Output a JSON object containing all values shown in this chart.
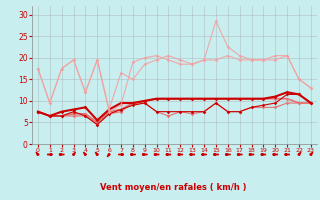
{
  "x": [
    0,
    1,
    2,
    3,
    4,
    5,
    6,
    7,
    8,
    9,
    10,
    11,
    12,
    13,
    14,
    15,
    16,
    17,
    18,
    19,
    20,
    21,
    22,
    23
  ],
  "series": [
    {
      "color": "#e87070",
      "alpha": 1.0,
      "linewidth": 0.8,
      "markersize": 1.8,
      "values": [
        7.5,
        6.5,
        6.5,
        6.5,
        6.5,
        4.5,
        7.0,
        7.5,
        9.5,
        9.5,
        7.5,
        6.5,
        7.5,
        7.0,
        7.5,
        9.5,
        7.5,
        7.5,
        8.5,
        8.5,
        8.5,
        9.5,
        9.5,
        9.5
      ]
    },
    {
      "color": "#e87070",
      "alpha": 1.0,
      "linewidth": 1.2,
      "markersize": 1.8,
      "values": [
        7.5,
        6.5,
        6.5,
        7.0,
        7.0,
        5.0,
        7.5,
        8.0,
        9.5,
        10.0,
        10.5,
        10.5,
        10.5,
        10.5,
        10.5,
        10.5,
        10.5,
        10.5,
        10.5,
        10.5,
        10.5,
        10.5,
        9.5,
        9.5
      ]
    },
    {
      "color": "#cc0000",
      "alpha": 1.0,
      "linewidth": 0.8,
      "markersize": 1.8,
      "values": [
        7.5,
        6.5,
        6.5,
        7.5,
        6.5,
        4.5,
        7.0,
        8.0,
        9.0,
        9.5,
        7.5,
        7.5,
        7.5,
        7.5,
        7.5,
        9.5,
        7.5,
        7.5,
        8.5,
        9.0,
        9.5,
        11.5,
        11.5,
        9.5
      ]
    },
    {
      "color": "#cc0000",
      "alpha": 1.0,
      "linewidth": 1.5,
      "markersize": 1.8,
      "values": [
        7.5,
        6.5,
        7.5,
        8.0,
        8.5,
        5.5,
        8.0,
        9.5,
        9.5,
        10.0,
        10.5,
        10.5,
        10.5,
        10.5,
        10.5,
        10.5,
        10.5,
        10.5,
        10.5,
        10.5,
        11.0,
        12.0,
        11.5,
        9.5
      ]
    },
    {
      "color": "#f4a0a0",
      "alpha": 0.9,
      "linewidth": 0.8,
      "markersize": 1.8,
      "values": [
        17.5,
        9.5,
        17.5,
        19.5,
        12.0,
        19.5,
        8.0,
        16.5,
        15.0,
        18.5,
        19.5,
        20.5,
        19.5,
        18.5,
        19.5,
        19.5,
        20.5,
        19.5,
        19.5,
        19.5,
        20.5,
        20.5,
        15.0,
        13.0
      ]
    },
    {
      "color": "#f4a0a0",
      "alpha": 0.9,
      "linewidth": 0.8,
      "markersize": 1.8,
      "values": [
        17.5,
        9.5,
        17.5,
        19.5,
        12.0,
        19.5,
        7.5,
        9.0,
        19.0,
        20.0,
        20.5,
        19.5,
        18.5,
        18.5,
        19.5,
        28.5,
        22.5,
        20.5,
        19.5,
        19.5,
        19.5,
        20.5,
        15.0,
        13.0
      ]
    }
  ],
  "arrow_angles": [
    225,
    270,
    90,
    135,
    225,
    225,
    315,
    270,
    90,
    90,
    90,
    90,
    90,
    90,
    90,
    90,
    90,
    90,
    90,
    90,
    90,
    90,
    135,
    135
  ],
  "xlim": [
    -0.5,
    23.5
  ],
  "ylim": [
    0,
    32
  ],
  "yticks": [
    0,
    5,
    10,
    15,
    20,
    25,
    30
  ],
  "xticks": [
    0,
    1,
    2,
    3,
    4,
    5,
    6,
    7,
    8,
    9,
    10,
    11,
    12,
    13,
    14,
    15,
    16,
    17,
    18,
    19,
    20,
    21,
    22,
    23
  ],
  "xlabel": "Vent moyen/en rafales ( km/h )",
  "background_color": "#c8eef0",
  "grid_color": "#a0a0a0",
  "tick_color": "#cc0000",
  "label_color": "#cc0000",
  "arrow_color": "#cc0000"
}
